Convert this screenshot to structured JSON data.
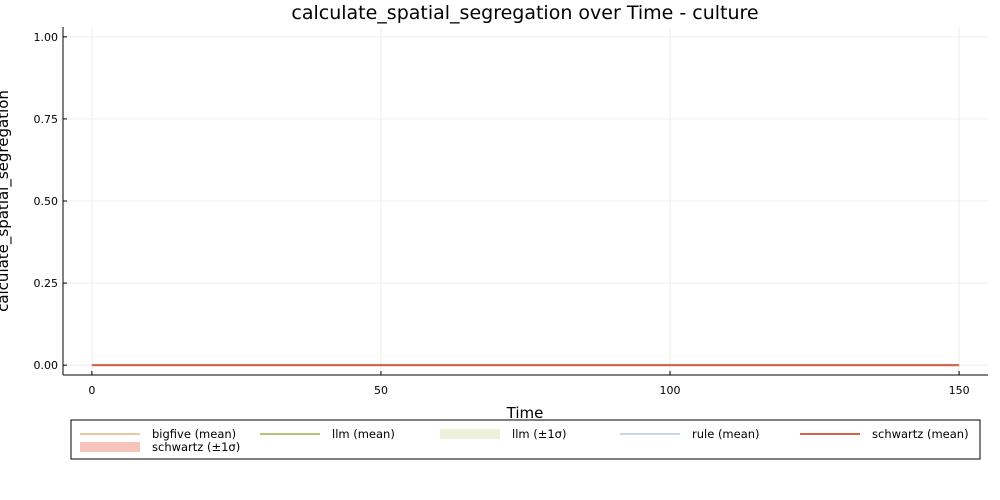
{
  "chart_data": {
    "type": "line",
    "title": "calculate_spatial_segregation over Time - culture",
    "xlabel": "Time",
    "ylabel": "calculate_spatial_segregation",
    "xlim": [
      -5,
      155
    ],
    "ylim": [
      -0.03,
      1.03
    ],
    "xticks": [
      0,
      50,
      100,
      150
    ],
    "xtick_labels": [
      "0",
      "50",
      "100",
      "150"
    ],
    "yticks": [
      0,
      0.25,
      0.5,
      0.75,
      1.0
    ],
    "ytick_labels": [
      "0.00",
      "0.25",
      "0.50",
      "0.75",
      "1.00"
    ],
    "grid": true,
    "legend_position": "bottom",
    "x": [
      0,
      150
    ],
    "series": [
      {
        "name": "bigfive (mean)",
        "kind": "line",
        "color": "#e8c9a0",
        "values": [
          0,
          0
        ]
      },
      {
        "name": "llm (mean)",
        "kind": "line",
        "color": "#b8bf7a",
        "values": [
          0,
          0
        ]
      },
      {
        "name": "llm (±1σ)",
        "kind": "band",
        "color": "#eef0dc",
        "lower": [
          0,
          0
        ],
        "upper": [
          0,
          0
        ]
      },
      {
        "name": "rule (mean)",
        "kind": "line",
        "color": "#c7d6e8",
        "values": [
          0,
          0
        ]
      },
      {
        "name": "schwartz (mean)",
        "kind": "line",
        "color": "#d95f4b",
        "values": [
          0,
          0
        ]
      },
      {
        "name": "schwartz (±1σ)",
        "kind": "band",
        "color": "#f7c4bb",
        "lower": [
          0,
          0
        ],
        "upper": [
          0,
          0
        ]
      }
    ]
  }
}
